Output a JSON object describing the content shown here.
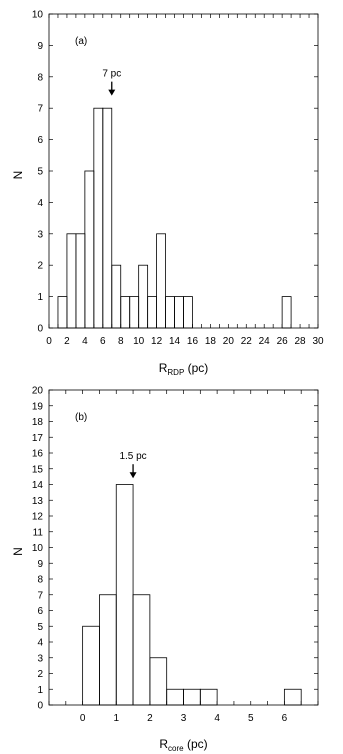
{
  "chart_data": [
    {
      "type": "bar",
      "panel_label": "(a)",
      "xlabel_main": "R",
      "xlabel_sub": "RDP",
      "xlabel_unit": " (pc)",
      "ylabel": "N",
      "xlim": [
        0,
        30
      ],
      "ylim": [
        0,
        10
      ],
      "xticks_minor": [
        0,
        1,
        2,
        3,
        4,
        5,
        6,
        7,
        8,
        9,
        10,
        11,
        12,
        13,
        14,
        15,
        16,
        17,
        18,
        19,
        20,
        21,
        22,
        23,
        24,
        25,
        26,
        27,
        28,
        29,
        30
      ],
      "xtick_labels": [
        "0",
        "2",
        "4",
        "6",
        "8",
        "10",
        "12",
        "14",
        "16",
        "18",
        "20",
        "22",
        "24",
        "26",
        "28",
        "30"
      ],
      "ytick_labels": [
        "0",
        "1",
        "2",
        "3",
        "4",
        "5",
        "6",
        "7",
        "8",
        "9",
        "10"
      ],
      "bin_width": 1,
      "bins": [
        {
          "x0": 1,
          "value": 1
        },
        {
          "x0": 2,
          "value": 3
        },
        {
          "x0": 3,
          "value": 3
        },
        {
          "x0": 4,
          "value": 5
        },
        {
          "x0": 5,
          "value": 7
        },
        {
          "x0": 6,
          "value": 7
        },
        {
          "x0": 7,
          "value": 2
        },
        {
          "x0": 8,
          "value": 1
        },
        {
          "x0": 9,
          "value": 1
        },
        {
          "x0": 10,
          "value": 2
        },
        {
          "x0": 11,
          "value": 1
        },
        {
          "x0": 12,
          "value": 3
        },
        {
          "x0": 13,
          "value": 1
        },
        {
          "x0": 14,
          "value": 1
        },
        {
          "x0": 15,
          "value": 1
        },
        {
          "x0": 26,
          "value": 1
        }
      ],
      "annotation": {
        "text": "7 pc",
        "x": 7,
        "arrow_to_y": 7.4
      }
    },
    {
      "type": "bar",
      "panel_label": "(b)",
      "xlabel_main": "R",
      "xlabel_sub": "core",
      "xlabel_unit": " (pc)",
      "ylabel": "N",
      "xlim": [
        -1,
        7
      ],
      "ylim": [
        0,
        20
      ],
      "xticks_minor": [
        -1,
        -0.5,
        0,
        0.5,
        1,
        1.5,
        2,
        2.5,
        3,
        3.5,
        4,
        4.5,
        5,
        5.5,
        6,
        6.5,
        7
      ],
      "xtick_labels": [
        "0",
        "1",
        "2",
        "3",
        "4",
        "5",
        "6"
      ],
      "ytick_labels": [
        "0",
        "1",
        "2",
        "3",
        "4",
        "5",
        "6",
        "7",
        "8",
        "9",
        "10",
        "11",
        "12",
        "13",
        "14",
        "15",
        "16",
        "17",
        "18",
        "19",
        "20"
      ],
      "bin_width": 0.5,
      "bins": [
        {
          "x0": 0,
          "value": 5
        },
        {
          "x0": 0.5,
          "value": 7
        },
        {
          "x0": 1,
          "value": 14
        },
        {
          "x0": 1.5,
          "value": 7
        },
        {
          "x0": 2,
          "value": 3
        },
        {
          "x0": 2.5,
          "value": 1
        },
        {
          "x0": 3,
          "value": 1
        },
        {
          "x0": 3.5,
          "value": 1
        },
        {
          "x0": 6,
          "value": 1
        }
      ],
      "annotation": {
        "text": "1.5 pc",
        "x": 1.5,
        "arrow_to_y": 14.4
      }
    }
  ]
}
